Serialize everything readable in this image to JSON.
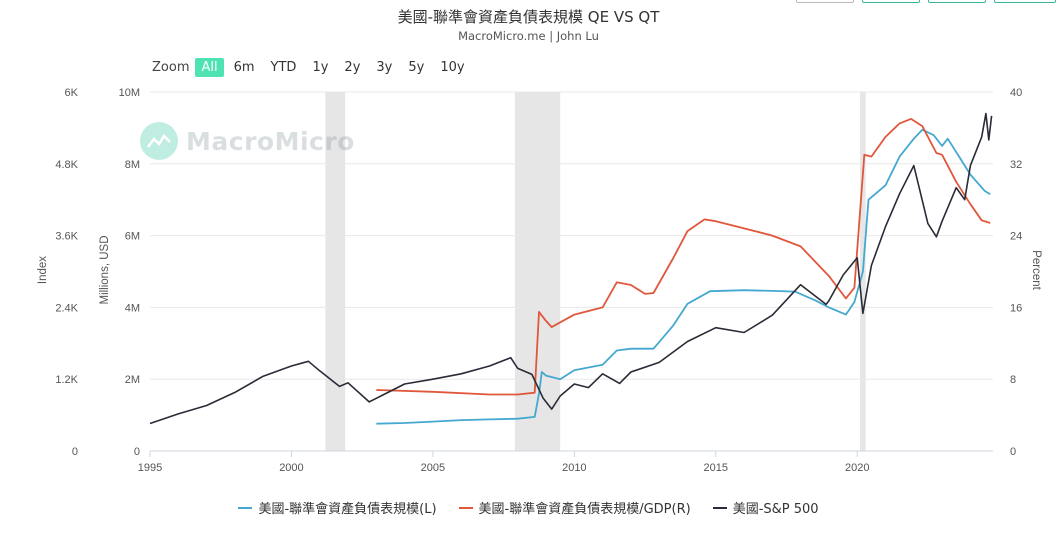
{
  "header": {
    "title": "美國-聯準會資產負債表規模 QE VS QT",
    "subtitle": "MacroMicro.me | John Lu"
  },
  "zoom": {
    "label": "Zoom",
    "options": [
      "All",
      "6m",
      "YTD",
      "1y",
      "2y",
      "3y",
      "5y",
      "10y"
    ],
    "active": "All"
  },
  "watermark": {
    "text": "MacroMicro"
  },
  "colors": {
    "balance": "#45a8d0",
    "ratio": "#e0573c",
    "sp500": "#2b2b38",
    "recession": "#e6e6e6",
    "accent": "#4fe3b3"
  },
  "chart_data": {
    "type": "line",
    "x_range": [
      1995,
      2024.8
    ],
    "x_ticks": [
      "1995",
      "2000",
      "2005",
      "2010",
      "2015",
      "2020"
    ],
    "axes": {
      "index": {
        "title": "Index",
        "min": 0,
        "max": 6000,
        "tick_labels": [
          "0",
          "1.2K",
          "2.4K",
          "3.6K",
          "4.8K",
          "6K"
        ]
      },
      "millions": {
        "title": "Millions, USD",
        "min": 0,
        "max": 10000000,
        "tick_labels": [
          "0",
          "2M",
          "4M",
          "6M",
          "8M",
          "10M"
        ]
      },
      "percent": {
        "title": "Percent",
        "min": 0,
        "max": 40,
        "tick_labels": [
          "0",
          "8",
          "16",
          "24",
          "32",
          "40"
        ]
      }
    },
    "recessions": [
      [
        2001.2,
        2001.9
      ],
      [
        2007.9,
        2009.5
      ],
      [
        2020.1,
        2020.3
      ]
    ],
    "grid": "horizontal",
    "legend_position": "bottom",
    "series": [
      {
        "name": "美國-聯準會資產負債表規模(L)",
        "axis": "millions",
        "points": [
          [
            2003.0,
            760000
          ],
          [
            2004.0,
            780000
          ],
          [
            2005.0,
            820000
          ],
          [
            2006.0,
            860000
          ],
          [
            2007.0,
            880000
          ],
          [
            2008.0,
            900000
          ],
          [
            2008.6,
            950000
          ],
          [
            2008.75,
            1600000
          ],
          [
            2008.85,
            2200000
          ],
          [
            2009.0,
            2100000
          ],
          [
            2009.5,
            2000000
          ],
          [
            2010.0,
            2250000
          ],
          [
            2011.0,
            2400000
          ],
          [
            2011.5,
            2800000
          ],
          [
            2012.0,
            2850000
          ],
          [
            2012.8,
            2850000
          ],
          [
            2013.5,
            3500000
          ],
          [
            2014.0,
            4100000
          ],
          [
            2014.8,
            4450000
          ],
          [
            2016.0,
            4480000
          ],
          [
            2017.0,
            4460000
          ],
          [
            2017.8,
            4440000
          ],
          [
            2018.5,
            4200000
          ],
          [
            2019.0,
            4000000
          ],
          [
            2019.6,
            3800000
          ],
          [
            2019.9,
            4150000
          ],
          [
            2020.2,
            5000000
          ],
          [
            2020.4,
            7000000
          ],
          [
            2021.0,
            7400000
          ],
          [
            2021.5,
            8200000
          ],
          [
            2022.0,
            8700000
          ],
          [
            2022.3,
            8950000
          ],
          [
            2022.7,
            8800000
          ],
          [
            2023.0,
            8500000
          ],
          [
            2023.2,
            8700000
          ],
          [
            2023.6,
            8200000
          ],
          [
            2024.0,
            7700000
          ],
          [
            2024.5,
            7250000
          ],
          [
            2024.7,
            7150000
          ]
        ]
      },
      {
        "name": "美國-聯準會資產負債表規模/GDP(R)",
        "axis": "percent",
        "points": [
          [
            2003.0,
            6.8
          ],
          [
            2005.0,
            6.6
          ],
          [
            2007.0,
            6.3
          ],
          [
            2008.0,
            6.3
          ],
          [
            2008.6,
            6.5
          ],
          [
            2008.75,
            15.5
          ],
          [
            2009.0,
            14.5
          ],
          [
            2009.2,
            13.8
          ],
          [
            2010.0,
            15.2
          ],
          [
            2011.0,
            16.0
          ],
          [
            2011.5,
            18.8
          ],
          [
            2012.0,
            18.5
          ],
          [
            2012.5,
            17.5
          ],
          [
            2012.8,
            17.6
          ],
          [
            2013.5,
            21.5
          ],
          [
            2014.0,
            24.5
          ],
          [
            2014.6,
            25.8
          ],
          [
            2015.0,
            25.6
          ],
          [
            2016.0,
            24.8
          ],
          [
            2017.0,
            24.0
          ],
          [
            2018.0,
            22.8
          ],
          [
            2019.0,
            19.5
          ],
          [
            2019.6,
            17.0
          ],
          [
            2019.9,
            18.2
          ],
          [
            2020.25,
            33.0
          ],
          [
            2020.5,
            32.8
          ],
          [
            2021.0,
            35.0
          ],
          [
            2021.5,
            36.5
          ],
          [
            2021.9,
            37.0
          ],
          [
            2022.3,
            36.2
          ],
          [
            2022.8,
            33.2
          ],
          [
            2023.0,
            33.0
          ],
          [
            2023.5,
            30.0
          ],
          [
            2024.0,
            27.5
          ],
          [
            2024.4,
            25.7
          ],
          [
            2024.7,
            25.4
          ]
        ]
      },
      {
        "name": "美國-S&P 500",
        "axis": "index",
        "points": [
          [
            1995.0,
            460
          ],
          [
            1996.0,
            620
          ],
          [
            1997.0,
            760
          ],
          [
            1998.0,
            980
          ],
          [
            1999.0,
            1250
          ],
          [
            2000.0,
            1420
          ],
          [
            2000.6,
            1500
          ],
          [
            2001.0,
            1340
          ],
          [
            2001.7,
            1080
          ],
          [
            2002.0,
            1140
          ],
          [
            2002.75,
            820
          ],
          [
            2003.0,
            880
          ],
          [
            2004.0,
            1120
          ],
          [
            2005.0,
            1200
          ],
          [
            2006.0,
            1290
          ],
          [
            2007.0,
            1420
          ],
          [
            2007.75,
            1560
          ],
          [
            2008.0,
            1380
          ],
          [
            2008.5,
            1280
          ],
          [
            2008.9,
            880
          ],
          [
            2009.2,
            700
          ],
          [
            2009.5,
            920
          ],
          [
            2010.0,
            1120
          ],
          [
            2010.5,
            1060
          ],
          [
            2011.0,
            1290
          ],
          [
            2011.6,
            1130
          ],
          [
            2012.0,
            1320
          ],
          [
            2013.0,
            1480
          ],
          [
            2014.0,
            1830
          ],
          [
            2015.0,
            2060
          ],
          [
            2016.0,
            1980
          ],
          [
            2017.0,
            2270
          ],
          [
            2018.0,
            2780
          ],
          [
            2018.9,
            2450
          ],
          [
            2019.0,
            2510
          ],
          [
            2019.5,
            2940
          ],
          [
            2020.0,
            3230
          ],
          [
            2020.2,
            2300
          ],
          [
            2020.5,
            3100
          ],
          [
            2021.0,
            3750
          ],
          [
            2021.5,
            4300
          ],
          [
            2022.0,
            4770
          ],
          [
            2022.5,
            3800
          ],
          [
            2022.8,
            3580
          ],
          [
            2023.0,
            3840
          ],
          [
            2023.5,
            4400
          ],
          [
            2023.8,
            4200
          ],
          [
            2024.0,
            4770
          ],
          [
            2024.4,
            5250
          ],
          [
            2024.55,
            5640
          ],
          [
            2024.65,
            5200
          ],
          [
            2024.75,
            5600
          ]
        ]
      }
    ]
  },
  "legend": [
    {
      "label": "美國-聯準會資產負債表規模(L)",
      "color": "#45a8d0"
    },
    {
      "label": "美國-聯準會資產負債表規模/GDP(R)",
      "color": "#e0573c"
    },
    {
      "label": "美國-S&P 500",
      "color": "#2b2b38"
    }
  ]
}
